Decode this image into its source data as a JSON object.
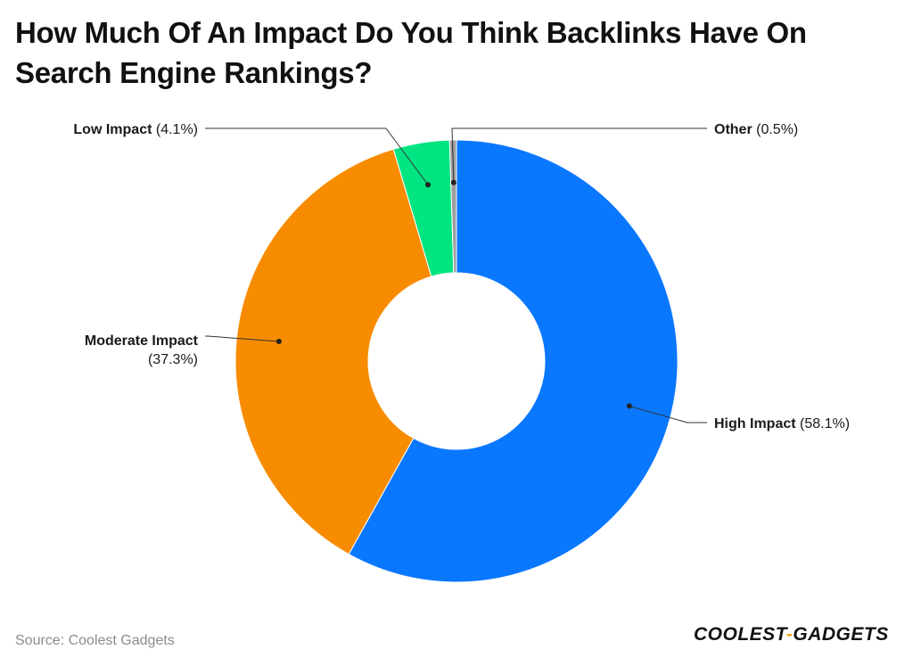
{
  "title": "How Much Of An Impact Do You Think Backlinks Have On Search Engine Rankings?",
  "source": "Source: Coolest Gadgets",
  "brand": {
    "part1": "COOLEST",
    "separator": "-",
    "part2": "GADGETS",
    "accent_color": "#f5a623"
  },
  "chart_data": {
    "type": "pie",
    "donut": true,
    "title": "How Much Of An Impact Do You Think Backlinks Have On Search Engine Rankings?",
    "slices": [
      {
        "label": "High Impact",
        "value": 58.1,
        "display": "(58.1%)",
        "color": "#0a77ff"
      },
      {
        "label": "Moderate Impact",
        "value": 37.3,
        "display": "(37.3%)",
        "color": "#f78c00"
      },
      {
        "label": "Low Impact",
        "value": 4.1,
        "display": "(4.1%)",
        "color": "#00e482"
      },
      {
        "label": "Other",
        "value": 0.5,
        "display": "(0.5%)",
        "color": "#9e9e9e"
      }
    ],
    "legend": "none"
  }
}
